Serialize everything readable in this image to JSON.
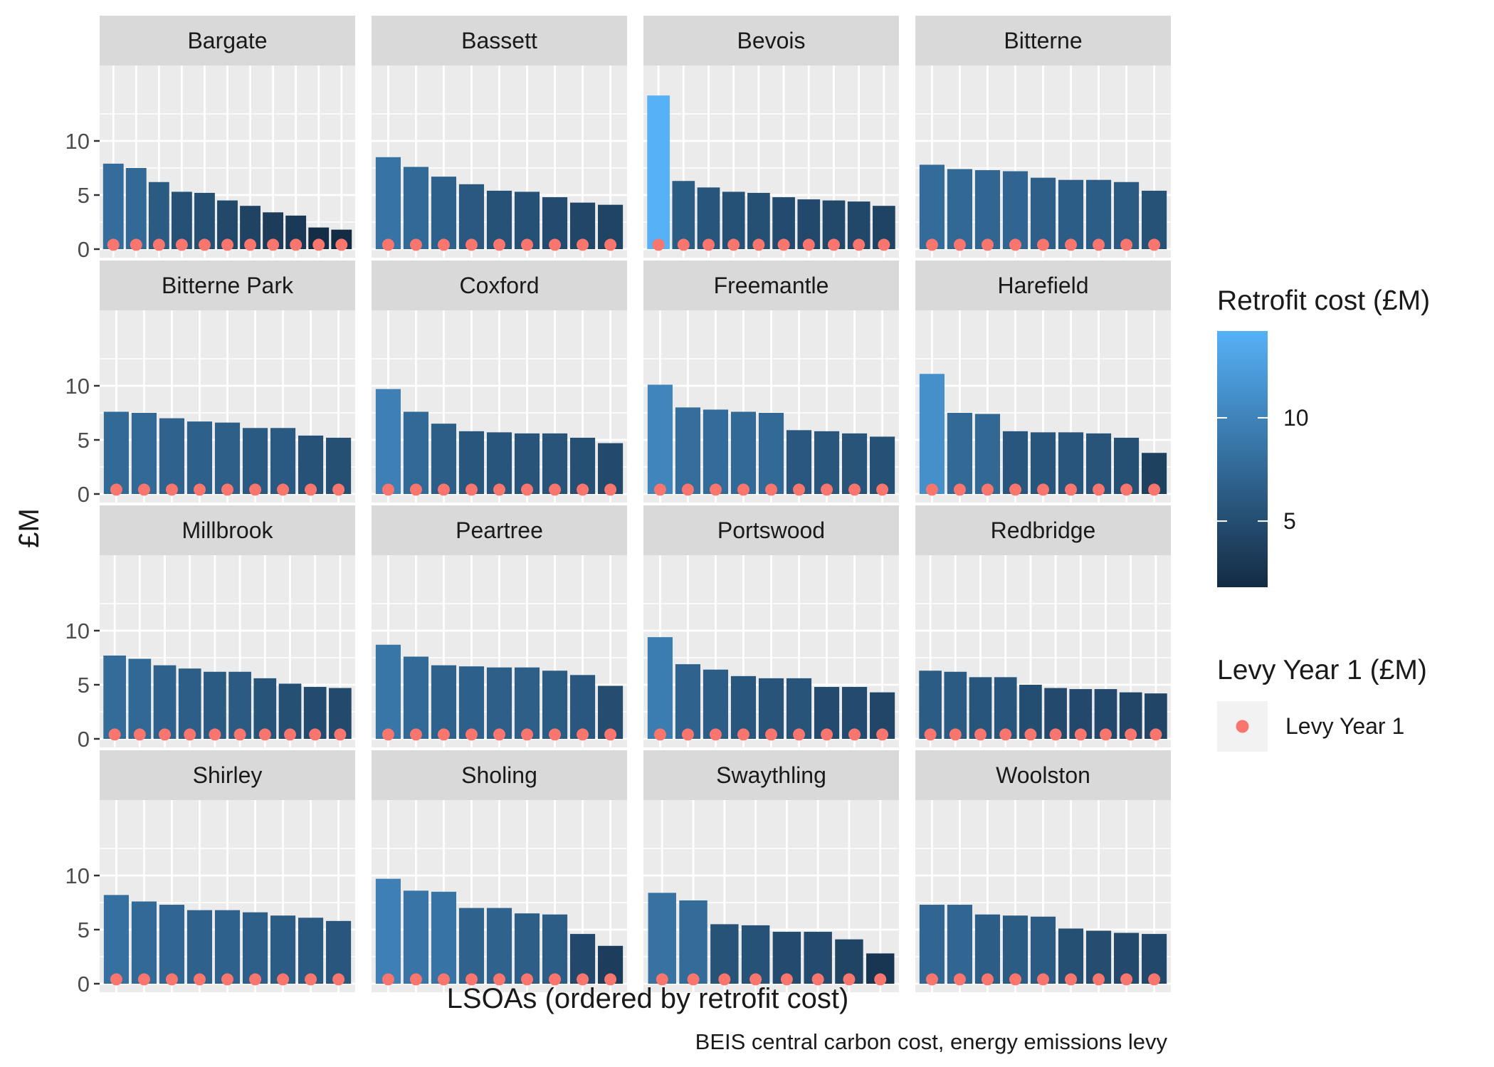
{
  "chart_data": {
    "type": "bar",
    "facets": [
      {
        "name": "Bargate",
        "values": [
          7.9,
          7.5,
          6.2,
          5.3,
          5.2,
          4.5,
          4.0,
          3.4,
          3.1,
          2.0,
          1.8
        ]
      },
      {
        "name": "Bassett",
        "values": [
          8.5,
          7.6,
          6.7,
          6.0,
          5.4,
          5.3,
          4.8,
          4.3,
          4.1
        ]
      },
      {
        "name": "Bevois",
        "values": [
          14.2,
          6.3,
          5.7,
          5.3,
          5.2,
          4.8,
          4.6,
          4.5,
          4.4,
          4.0
        ]
      },
      {
        "name": "Bitterne",
        "values": [
          7.8,
          7.4,
          7.3,
          7.2,
          6.6,
          6.4,
          6.4,
          6.2,
          5.4
        ]
      },
      {
        "name": "Bitterne Park",
        "values": [
          7.6,
          7.5,
          7.0,
          6.7,
          6.6,
          6.1,
          6.1,
          5.4,
          5.2
        ]
      },
      {
        "name": "Coxford",
        "values": [
          9.7,
          7.6,
          6.5,
          5.8,
          5.7,
          5.6,
          5.6,
          5.2,
          4.7
        ]
      },
      {
        "name": "Freemantle",
        "values": [
          10.1,
          8.0,
          7.8,
          7.6,
          7.5,
          5.9,
          5.8,
          5.6,
          5.3
        ]
      },
      {
        "name": "Harefield",
        "values": [
          11.1,
          7.5,
          7.4,
          5.8,
          5.7,
          5.7,
          5.6,
          5.2,
          3.8
        ]
      },
      {
        "name": "Millbrook",
        "values": [
          7.7,
          7.4,
          6.8,
          6.5,
          6.2,
          6.2,
          5.6,
          5.1,
          4.8,
          4.7
        ]
      },
      {
        "name": "Peartree",
        "values": [
          8.7,
          7.6,
          6.8,
          6.7,
          6.6,
          6.6,
          6.3,
          5.9,
          4.9
        ]
      },
      {
        "name": "Portswood",
        "values": [
          9.4,
          6.9,
          6.4,
          5.8,
          5.6,
          5.6,
          4.8,
          4.8,
          4.3
        ]
      },
      {
        "name": "Redbridge",
        "values": [
          6.3,
          6.2,
          5.7,
          5.7,
          5.0,
          4.7,
          4.6,
          4.6,
          4.3,
          4.2
        ]
      },
      {
        "name": "Shirley",
        "values": [
          8.2,
          7.6,
          7.3,
          6.8,
          6.8,
          6.6,
          6.3,
          6.1,
          5.8
        ]
      },
      {
        "name": "Sholing",
        "values": [
          9.7,
          8.6,
          8.5,
          7.0,
          7.0,
          6.5,
          6.4,
          4.6,
          3.5
        ]
      },
      {
        "name": "Swaythling",
        "values": [
          8.4,
          7.7,
          5.5,
          5.4,
          4.8,
          4.8,
          4.1,
          2.8
        ]
      },
      {
        "name": "Woolston",
        "values": [
          7.3,
          7.3,
          6.4,
          6.3,
          6.2,
          5.1,
          4.9,
          4.7,
          4.6
        ]
      }
    ],
    "levy_value": 0.4,
    "ylim": [
      0,
      15
    ],
    "yticks": [
      0,
      5,
      10
    ],
    "ylabel": "£M",
    "xlabel": "LSOAs (ordered by retrofit cost)",
    "caption": "BEIS central carbon cost, energy emissions levy",
    "legend_fill": {
      "title": "Retrofit cost (£M)",
      "ticks": [
        5,
        10
      ],
      "range": [
        1.8,
        14.2
      ],
      "low_color": "#132b43",
      "high_color": "#56b1f7"
    },
    "legend_points": {
      "title": "Levy Year 1 (£M)",
      "label": "Levy Year 1",
      "color": "#f8766d"
    },
    "colors": {
      "panel_bg": "#ebebeb",
      "strip_bg": "#d9d9d9",
      "grid": "#ffffff",
      "text": "#1a1a1a",
      "axis_text": "#4d4d4d"
    }
  }
}
